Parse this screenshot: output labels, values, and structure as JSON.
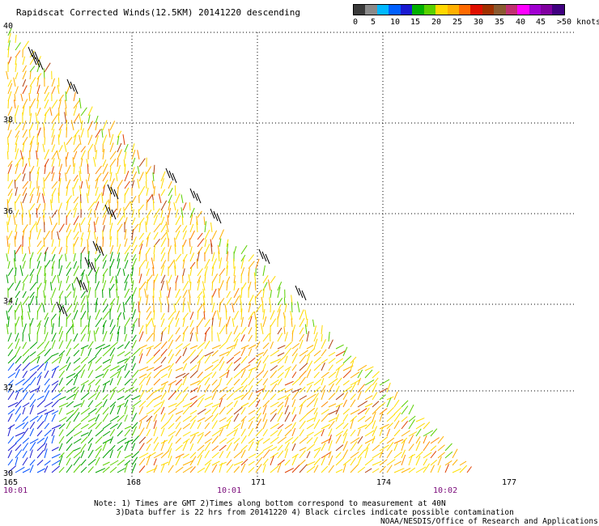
{
  "title": "Rapidscat Corrected Winds(12.5KM) 20141220 descending",
  "legend": {
    "colors": [
      "#3a3a3a",
      "#8a8a8a",
      "#00b8ff",
      "#0060ff",
      "#1a1ad0",
      "#00b000",
      "#5ad000",
      "#ffd800",
      "#ffb000",
      "#ff6a00",
      "#e01000",
      "#a03000",
      "#8a5a30",
      "#c03070",
      "#ff00ff",
      "#a000d0",
      "#8000a0",
      "#400080"
    ],
    "labels": [
      "0",
      "5",
      "10",
      "15",
      "20",
      "25",
      "30",
      "35",
      "40",
      "45",
      ">50 knots"
    ]
  },
  "lat_labels": [
    "40",
    "38",
    "36",
    "34",
    "32",
    "30"
  ],
  "lon_labels": [
    "165",
    "168",
    "171",
    "174",
    "177"
  ],
  "time_labels": [
    "10:01",
    "10:01",
    "10:02"
  ],
  "notes": [
    "Note: 1) Times are GMT 2)Times along bottom correspond to measurement at 40N",
    "3)Data buffer is 22 hrs from 20141220 4) Black circles indicate possible contamination",
    "NOAA/NESDIS/Office of Research and Applications"
  ]
}
